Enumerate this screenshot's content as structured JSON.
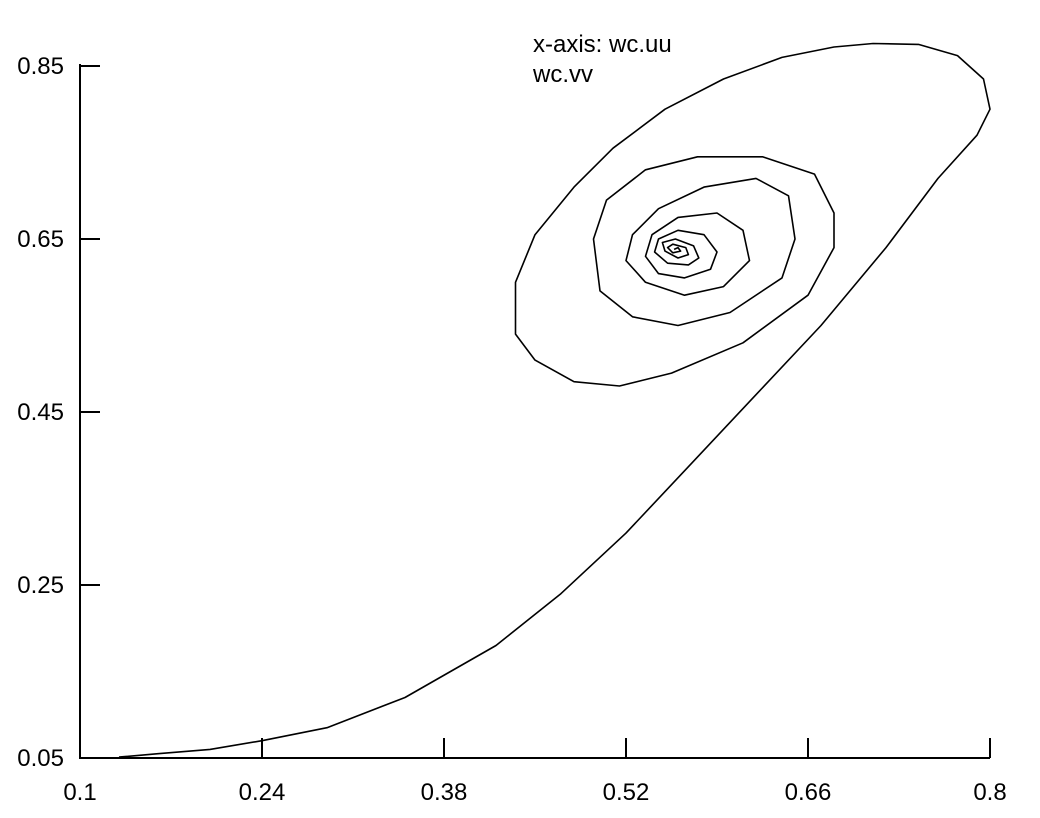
{
  "chart_data": {
    "type": "line",
    "legend": {
      "line1": "x-axis: wc.uu",
      "line2": "wc.vv"
    },
    "xlim": [
      0.1,
      0.8
    ],
    "ylim": [
      0.05,
      0.85
    ],
    "x_ticks": [
      "0.1",
      "0.24",
      "0.38",
      "0.52",
      "0.66",
      "0.8"
    ],
    "y_ticks": [
      "0.05",
      "0.25",
      "0.45",
      "0.65",
      "0.85"
    ],
    "grid": false,
    "series": [
      {
        "x": [
          0.13,
          0.16,
          0.2,
          0.24,
          0.29,
          0.35,
          0.42,
          0.47,
          0.52,
          0.57,
          0.62,
          0.67,
          0.72,
          0.76,
          0.79,
          0.8,
          0.795,
          0.775,
          0.745,
          0.71,
          0.68,
          0.64,
          0.595,
          0.55,
          0.51,
          0.48,
          0.45,
          0.435,
          0.435,
          0.45,
          0.48,
          0.515,
          0.555,
          0.61,
          0.66,
          0.68,
          0.68,
          0.665,
          0.625,
          0.575,
          0.535,
          0.505,
          0.495,
          0.5,
          0.525,
          0.56,
          0.6,
          0.64,
          0.65,
          0.645,
          0.62,
          0.58,
          0.545,
          0.525,
          0.52,
          0.535,
          0.565,
          0.595,
          0.615,
          0.61,
          0.59,
          0.56,
          0.54,
          0.535,
          0.545,
          0.565,
          0.585,
          0.59,
          0.58,
          0.56,
          0.545,
          0.542,
          0.552,
          0.568,
          0.576,
          0.572,
          0.558,
          0.548,
          0.55,
          0.56,
          0.568,
          0.566,
          0.556,
          0.552,
          0.556,
          0.562,
          0.56,
          0.557
        ],
        "y": [
          0.051,
          0.055,
          0.06,
          0.07,
          0.085,
          0.12,
          0.18,
          0.24,
          0.31,
          0.39,
          0.47,
          0.55,
          0.64,
          0.72,
          0.77,
          0.8,
          0.835,
          0.862,
          0.875,
          0.876,
          0.872,
          0.86,
          0.835,
          0.8,
          0.755,
          0.71,
          0.655,
          0.6,
          0.54,
          0.51,
          0.485,
          0.48,
          0.495,
          0.53,
          0.585,
          0.64,
          0.68,
          0.725,
          0.745,
          0.745,
          0.73,
          0.695,
          0.65,
          0.59,
          0.56,
          0.55,
          0.565,
          0.605,
          0.65,
          0.7,
          0.72,
          0.71,
          0.685,
          0.655,
          0.625,
          0.6,
          0.585,
          0.595,
          0.625,
          0.66,
          0.68,
          0.675,
          0.655,
          0.63,
          0.61,
          0.605,
          0.615,
          0.635,
          0.655,
          0.66,
          0.65,
          0.635,
          0.622,
          0.62,
          0.628,
          0.642,
          0.65,
          0.646,
          0.636,
          0.628,
          0.632,
          0.64,
          0.644,
          0.64,
          0.634,
          0.636,
          0.64,
          0.638
        ]
      }
    ]
  }
}
